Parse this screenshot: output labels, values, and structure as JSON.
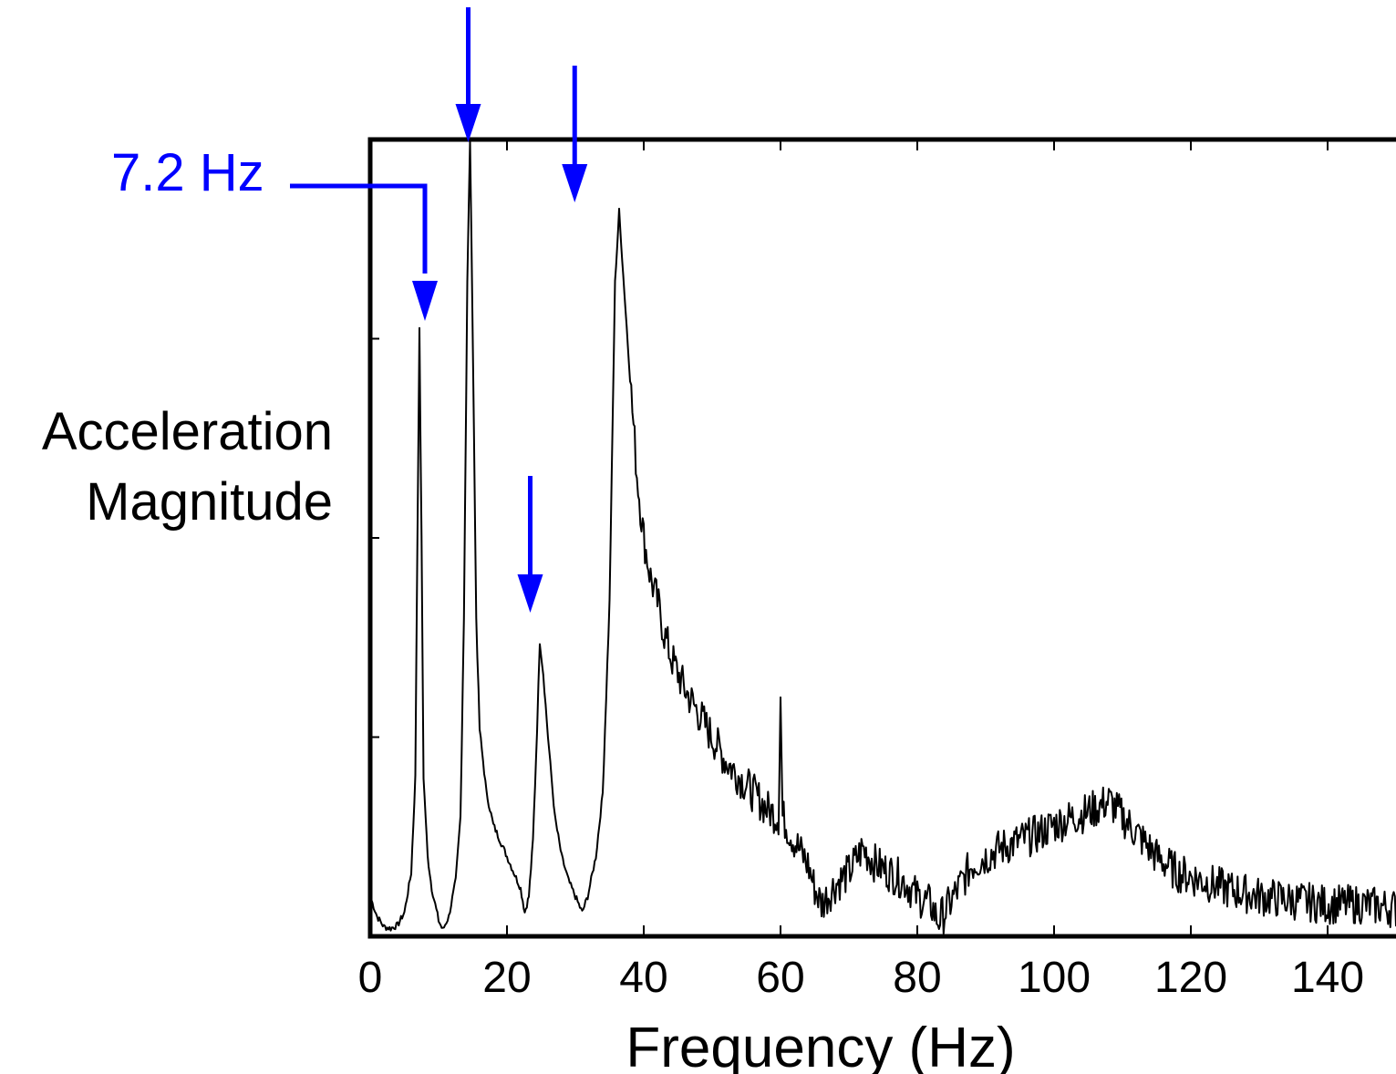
{
  "chart_data": {
    "type": "line",
    "title": "",
    "xlabel": "Frequency (Hz)",
    "ylabel_lines": [
      "Acceleration",
      "Magnitude"
    ],
    "xlim": [
      0,
      152
    ],
    "ylim": [
      0,
      1
    ],
    "x_ticks": [
      0,
      20,
      40,
      60,
      80,
      100,
      120,
      140
    ],
    "x_tick_labels": [
      "0",
      "20",
      "40",
      "60",
      "80",
      "100",
      "120",
      "140"
    ],
    "y_tick_labels_shown": false,
    "grid": false,
    "series": [
      {
        "points": [
          [
            0,
            0.05
          ],
          [
            1,
            0.025
          ],
          [
            2,
            0.012
          ],
          [
            3,
            0.01
          ],
          [
            4,
            0.014
          ],
          [
            5,
            0.03
          ],
          [
            6,
            0.08
          ],
          [
            6.6,
            0.2
          ],
          [
            6.9,
            0.5
          ],
          [
            7.2,
            0.76
          ],
          [
            7.5,
            0.5
          ],
          [
            7.8,
            0.2
          ],
          [
            8.4,
            0.1
          ],
          [
            9,
            0.06
          ],
          [
            10,
            0.02
          ],
          [
            10.6,
            0.008
          ],
          [
            11.5,
            0.025
          ],
          [
            12.5,
            0.07
          ],
          [
            13.2,
            0.15
          ],
          [
            13.7,
            0.4
          ],
          [
            14.2,
            0.82
          ],
          [
            14.6,
            1.0
          ],
          [
            15,
            0.75
          ],
          [
            15.5,
            0.4
          ],
          [
            16,
            0.26
          ],
          [
            17,
            0.18
          ],
          [
            18,
            0.14
          ],
          [
            19,
            0.12
          ],
          [
            20,
            0.1
          ],
          [
            21,
            0.08
          ],
          [
            22,
            0.06
          ],
          [
            22.6,
            0.03
          ],
          [
            23.2,
            0.05
          ],
          [
            23.8,
            0.12
          ],
          [
            24.4,
            0.26
          ],
          [
            24.8,
            0.37
          ],
          [
            25.3,
            0.33
          ],
          [
            26,
            0.25
          ],
          [
            27,
            0.15
          ],
          [
            28,
            0.1
          ],
          [
            29,
            0.07
          ],
          [
            30,
            0.05
          ],
          [
            31,
            0.03
          ],
          [
            31.8,
            0.05
          ],
          [
            33,
            0.1
          ],
          [
            34,
            0.18
          ],
          [
            35,
            0.42
          ],
          [
            35.8,
            0.82
          ],
          [
            36.4,
            0.91
          ],
          [
            37,
            0.83
          ],
          [
            38,
            0.7
          ],
          [
            39,
            0.58
          ],
          [
            40,
            0.5
          ],
          [
            41,
            0.45
          ],
          [
            42,
            0.42
          ],
          [
            43,
            0.38
          ],
          [
            44,
            0.35
          ],
          [
            45,
            0.33
          ],
          [
            46,
            0.31
          ],
          [
            48,
            0.28
          ],
          [
            50,
            0.25
          ],
          [
            52,
            0.22
          ],
          [
            54,
            0.2
          ],
          [
            56,
            0.18
          ],
          [
            58,
            0.16
          ],
          [
            59.7,
            0.15
          ],
          [
            60,
            0.3
          ],
          [
            60.3,
            0.15
          ],
          [
            62,
            0.12
          ],
          [
            64,
            0.09
          ],
          [
            65,
            0.06
          ],
          [
            66,
            0.04
          ],
          [
            68,
            0.065
          ],
          [
            70,
            0.08
          ],
          [
            72,
            0.11
          ],
          [
            74,
            0.09
          ],
          [
            76,
            0.08
          ],
          [
            78,
            0.07
          ],
          [
            80,
            0.05
          ],
          [
            82,
            0.04
          ],
          [
            83,
            0.02
          ],
          [
            84,
            0.03
          ],
          [
            86,
            0.06
          ],
          [
            88,
            0.09
          ],
          [
            90,
            0.1
          ],
          [
            92,
            0.11
          ],
          [
            95,
            0.12
          ],
          [
            98,
            0.13
          ],
          [
            100,
            0.14
          ],
          [
            103,
            0.15
          ],
          [
            106,
            0.16
          ],
          [
            108,
            0.17
          ],
          [
            110,
            0.15
          ],
          [
            112,
            0.13
          ],
          [
            115,
            0.1
          ],
          [
            118,
            0.08
          ],
          [
            120,
            0.075
          ],
          [
            125,
            0.06
          ],
          [
            130,
            0.05
          ],
          [
            135,
            0.045
          ],
          [
            140,
            0.04
          ],
          [
            145,
            0.04
          ],
          [
            150,
            0.035
          ],
          [
            152,
            0.035
          ]
        ]
      }
    ],
    "annotations": [
      {
        "text": "7.2 Hz",
        "x": 7.2
      },
      {
        "text": "",
        "x": 14.6
      },
      {
        "text": "",
        "x": 23
      },
      {
        "text": "",
        "x": 29.5
      }
    ],
    "colors": {
      "line": "#000000",
      "annotation": "#0000ff"
    }
  }
}
